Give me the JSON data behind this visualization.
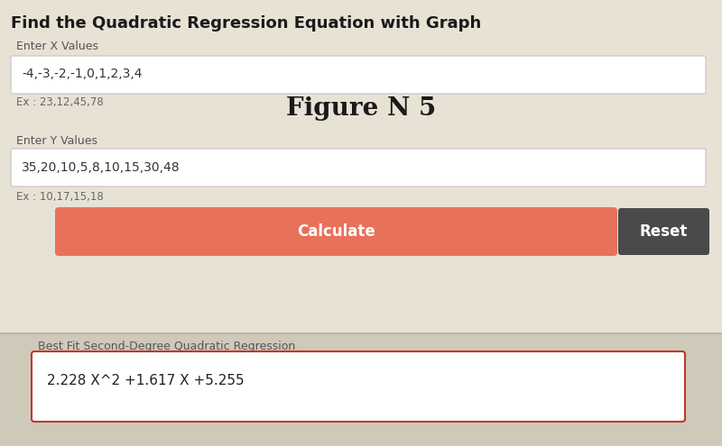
{
  "title": "Find the Quadratic Regression Equation with Graph",
  "figure_label": "Figure N 5",
  "x_label": "Enter X Values",
  "x_value": "-4,-3,-2,-1,0,1,2,3,4",
  "x_example": "Ex : 23,12,45,78",
  "y_label": "Enter Y Values",
  "y_value": "35,20,10,5,8,10,15,30,48",
  "y_example": "Ex : 10,17,15,18",
  "calc_button_text": "Calculate",
  "reset_button_text": "Reset",
  "result_label": "Best Fit Second-Degree Quadratic Regression",
  "result_value": "2.228 X^2 +1.617 X +5.255",
  "top_bg_color": "#e8e2d5",
  "bottom_bg_color": "#cfc9ba",
  "input_bg": "#ffffff",
  "calc_button_color": "#e8715a",
  "reset_button_color": "#4a4a4a",
  "result_border": "#c0392b",
  "title_fontsize": 13,
  "label_fontsize": 9,
  "value_fontsize": 10,
  "figure_label_fontsize": 20,
  "button_fontsize": 12,
  "result_label_fontsize": 9,
  "result_value_fontsize": 11
}
